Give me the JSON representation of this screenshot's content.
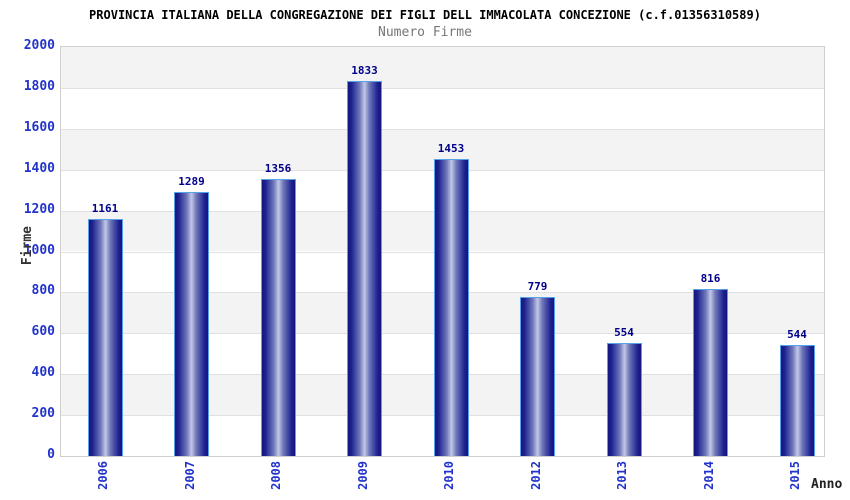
{
  "chart_data": {
    "type": "bar",
    "title": "PROVINCIA ITALIANA DELLA CONGREGAZIONE DEI FIGLI DELL IMMACOLATA CONCEZIONE (c.f.01356310589)",
    "subtitle": "Numero Firme",
    "xlabel": "Anno",
    "ylabel": "Firme",
    "categories": [
      "2006",
      "2007",
      "2008",
      "2009",
      "2010",
      "2012",
      "2013",
      "2014",
      "2015"
    ],
    "values": [
      1161,
      1289,
      1356,
      1833,
      1453,
      779,
      554,
      816,
      544
    ],
    "ylim": [
      0,
      2000
    ],
    "yticks": [
      0,
      200,
      400,
      600,
      800,
      1000,
      1200,
      1400,
      1600,
      1800,
      2000
    ],
    "grid": "horizontal gridlines with alternating gray/white bands",
    "legend_position": "none",
    "colors": {
      "bar_edge_dark": "#14147d",
      "bar_mid": "#7079ba",
      "bar_center_light": "#c3c8e6",
      "bar_border": "#58a0e8",
      "tick_label": "#2233cc",
      "value_label": "#00008b",
      "band_gray": "#f3f3f3",
      "grid_line": "#e0e0e0",
      "title_color": "#000000",
      "subtitle_color": "#777777",
      "axis_title_color": "#333333"
    }
  }
}
